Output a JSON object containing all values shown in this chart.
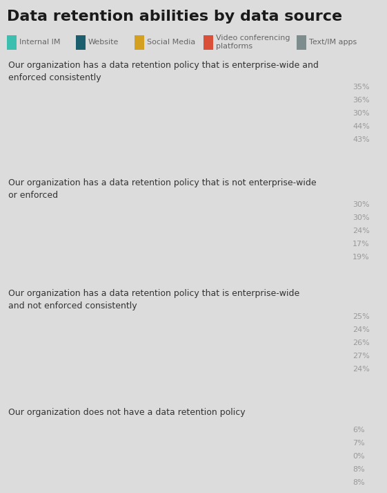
{
  "title": "Data retention abilities by data source",
  "background_color": "#dcdcdc",
  "bar_bg_color": "#f0f0f0",
  "bar_colors": [
    "#3dbfb0",
    "#1b5e6e",
    "#d4a020",
    "#d94f38",
    "#7d8c8c"
  ],
  "legend_labels": [
    "Internal IM",
    "Website",
    "Social Media",
    "Video conferencing\nplatforms",
    "Text/IM apps"
  ],
  "sections": [
    {
      "label": "Our organization has a data retention policy that is enterprise-wide and\nenforced consistently",
      "values": [
        35,
        36,
        30,
        44,
        43
      ]
    },
    {
      "label": "Our organization has a data retention policy that is not enterprise-wide\nor enforced",
      "values": [
        30,
        30,
        24,
        17,
        19
      ]
    },
    {
      "label": "Our organization has a data retention policy that is enterprise-wide\nand not enforced consistently",
      "values": [
        25,
        24,
        26,
        27,
        24
      ]
    },
    {
      "label": "Our organization does not have a data retention policy",
      "values": [
        6,
        7,
        0,
        8,
        8
      ]
    }
  ],
  "max_value": 100,
  "title_fontsize": 16,
  "label_fontsize": 9,
  "value_fontsize": 8,
  "legend_fontsize": 8
}
